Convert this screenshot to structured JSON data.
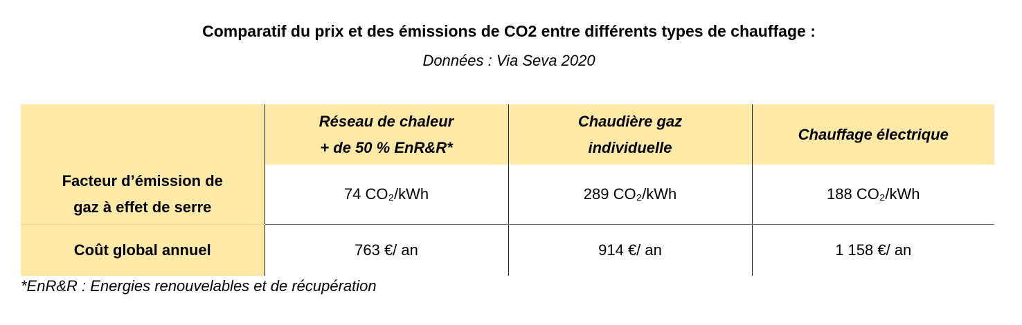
{
  "header": {
    "title": "Comparatif du prix et des émissions de CO2 entre différents types de chauffage :",
    "subtitle": "Données : Via Seva 2020"
  },
  "table": {
    "columns": [
      "Réseau de chaleur\n+ de 50 % EnR&R*",
      "Chaudière gaz\nindividuelle",
      "Chauffage électrique"
    ],
    "rows": [
      [
        "Facteur d’émission de\ngaz à effet de serre",
        "74 CO₂/kWh",
        "289 CO₂/kWh",
        "188 CO₂/kWh"
      ],
      [
        "Coût global annuel",
        "763 €/ an",
        "914 €/ an",
        "1 158 €/ an"
      ]
    ]
  },
  "footnote": "*EnR&R : Energies renouvelables et de récupération"
}
